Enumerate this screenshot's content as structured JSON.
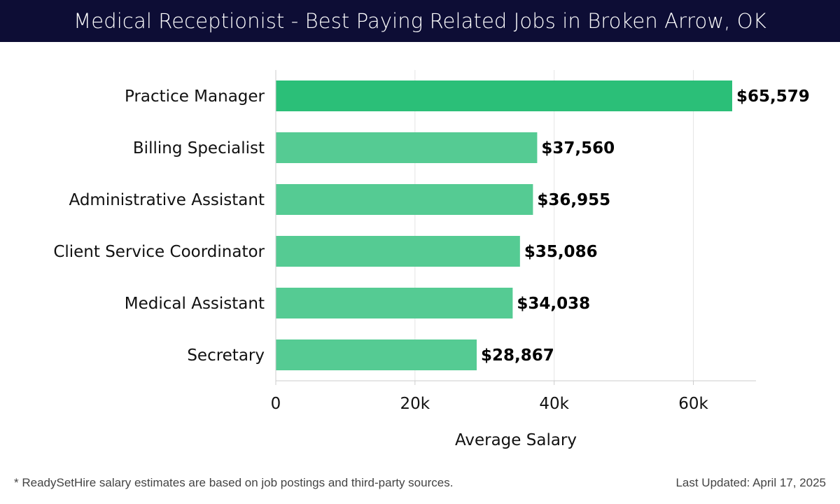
{
  "header": {
    "title": "Medical Receptionist - Best Paying Related Jobs in Broken Arrow, OK"
  },
  "chart_data": {
    "type": "bar",
    "orientation": "horizontal",
    "categories": [
      "Practice Manager",
      "Billing Specialist",
      "Administrative Assistant",
      "Client Service Coordinator",
      "Medical Assistant",
      "Secretary"
    ],
    "values": [
      65579,
      37560,
      36955,
      35086,
      34038,
      28867
    ],
    "value_labels": [
      "$65,579",
      "$37,560",
      "$36,955",
      "$35,086",
      "$34,038",
      "$28,867"
    ],
    "xlabel": "Average Salary",
    "ylabel": "",
    "xlim": [
      0,
      69000
    ],
    "xticks": [
      0,
      20000,
      40000,
      60000
    ],
    "xtick_labels": [
      "0",
      "20k",
      "40k",
      "60k"
    ],
    "grid": "vertical",
    "highlight_color": "#2bbf78",
    "bar_color": "#55cb93"
  },
  "footer": {
    "note": "* ReadySetHire salary estimates are based on job postings and third-party sources.",
    "updated": "Last Updated: April 17, 2025"
  }
}
